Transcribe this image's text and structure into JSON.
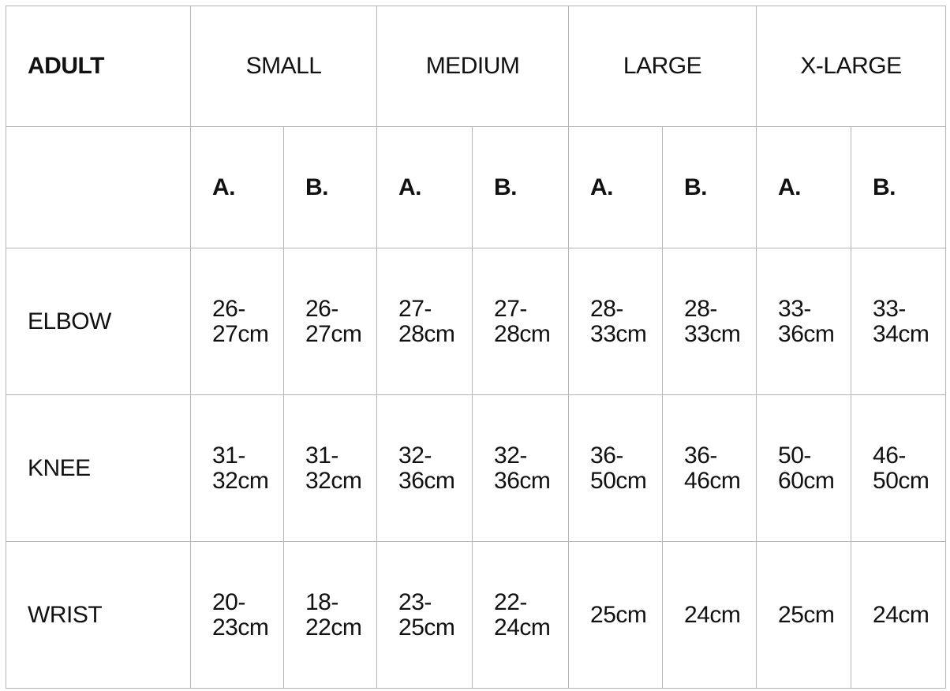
{
  "table": {
    "header": [
      "ADULT",
      "SMALL",
      "MEDIUM",
      "LARGE",
      "X-LARGE"
    ],
    "subheader": [
      "A.",
      "B.",
      "A.",
      "B.",
      "A.",
      "B.",
      "A.",
      "B."
    ],
    "rows": [
      {
        "label": "ELBOW",
        "values": [
          "26-27cm",
          "26-27cm",
          "27-28cm",
          "27-28cm",
          "28-33cm",
          "28-33cm",
          "33-36cm",
          "33-34cm"
        ]
      },
      {
        "label": "KNEE",
        "values": [
          "31-32cm",
          "31-32cm",
          "32-36cm",
          "32-36cm",
          "36-50cm",
          "36-46cm",
          "50-60cm",
          "46-50cm"
        ]
      },
      {
        "label": "WRIST",
        "values": [
          "20-23cm",
          "18-22cm",
          "23-25cm",
          "22-24cm",
          "25cm",
          "24cm",
          "25cm",
          "24cm"
        ]
      }
    ]
  }
}
